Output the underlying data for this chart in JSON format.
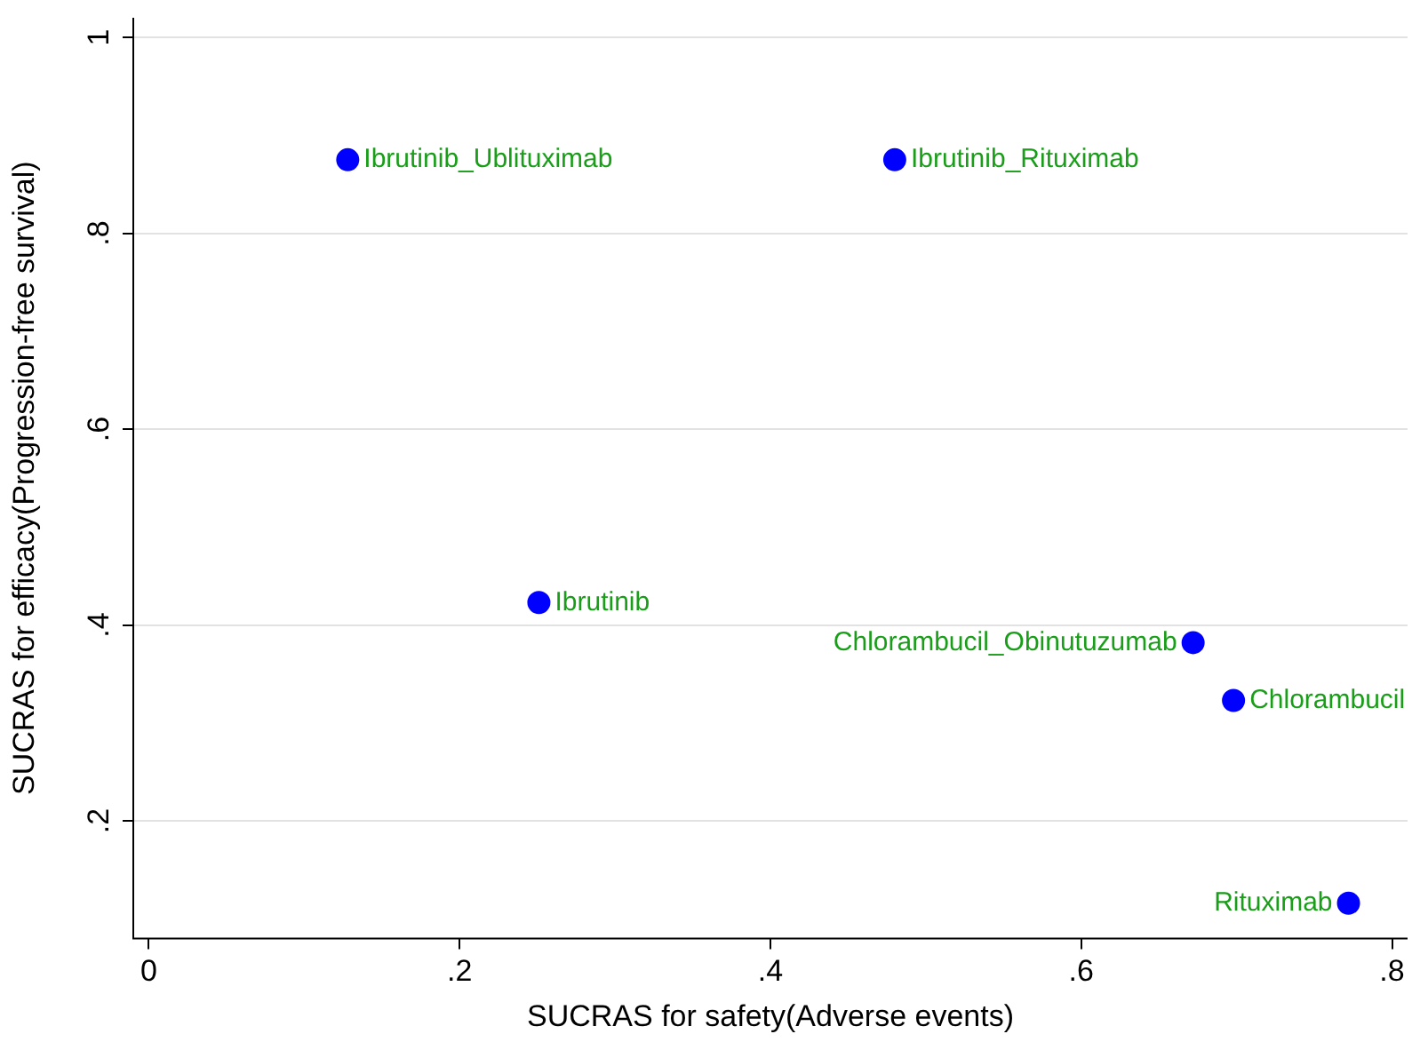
{
  "chart_data": {
    "type": "scatter",
    "xlabel": "SUCRAS for safety(Adverse events)",
    "ylabel": "SUCRAS for efficacy(Progression-free survival)",
    "series": [
      {
        "color": "#0000ff",
        "x": [
          0.128,
          0.48,
          0.251,
          0.672,
          0.698,
          0.772
        ],
        "values": [
          0.875,
          0.875,
          0.423,
          0.382,
          0.323,
          0.116
        ]
      }
    ],
    "annotations": [
      {
        "text": "Ibrutinib_Ublituximab",
        "x": 0.128,
        "y": 0.875
      },
      {
        "text": "Ibrutinib_Rituximab",
        "x": 0.48,
        "y": 0.875
      },
      {
        "text": "Ibrutinib",
        "x": 0.251,
        "y": 0.423
      },
      {
        "text": "Chlorambucil_Obinutuzumab",
        "x": 0.672,
        "y": 0.382
      },
      {
        "text": "Chlorambucil",
        "x": 0.698,
        "y": 0.323
      },
      {
        "text": "Rituximab",
        "x": 0.772,
        "y": 0.116
      }
    ],
    "xlim": [
      -0.01,
      0.81
    ],
    "ylim": [
      0.08,
      1.02
    ],
    "xticks": [
      0,
      {
        "value": 0.2,
        "label": ".2"
      },
      {
        "value": 0.4,
        "label": ".4"
      },
      {
        "value": 0.6,
        "label": ".6"
      },
      {
        "value": 0.8,
        "label": ".8"
      }
    ],
    "yticks": [
      {
        "value": 0.2,
        "label": ".2"
      },
      {
        "value": 0.4,
        "label": ".4"
      },
      {
        "value": 0.6,
        "label": ".6"
      },
      {
        "value": 0.8,
        "label": ".8"
      },
      1
    ],
    "grid": "y",
    "marker": "circle",
    "legend": false
  }
}
